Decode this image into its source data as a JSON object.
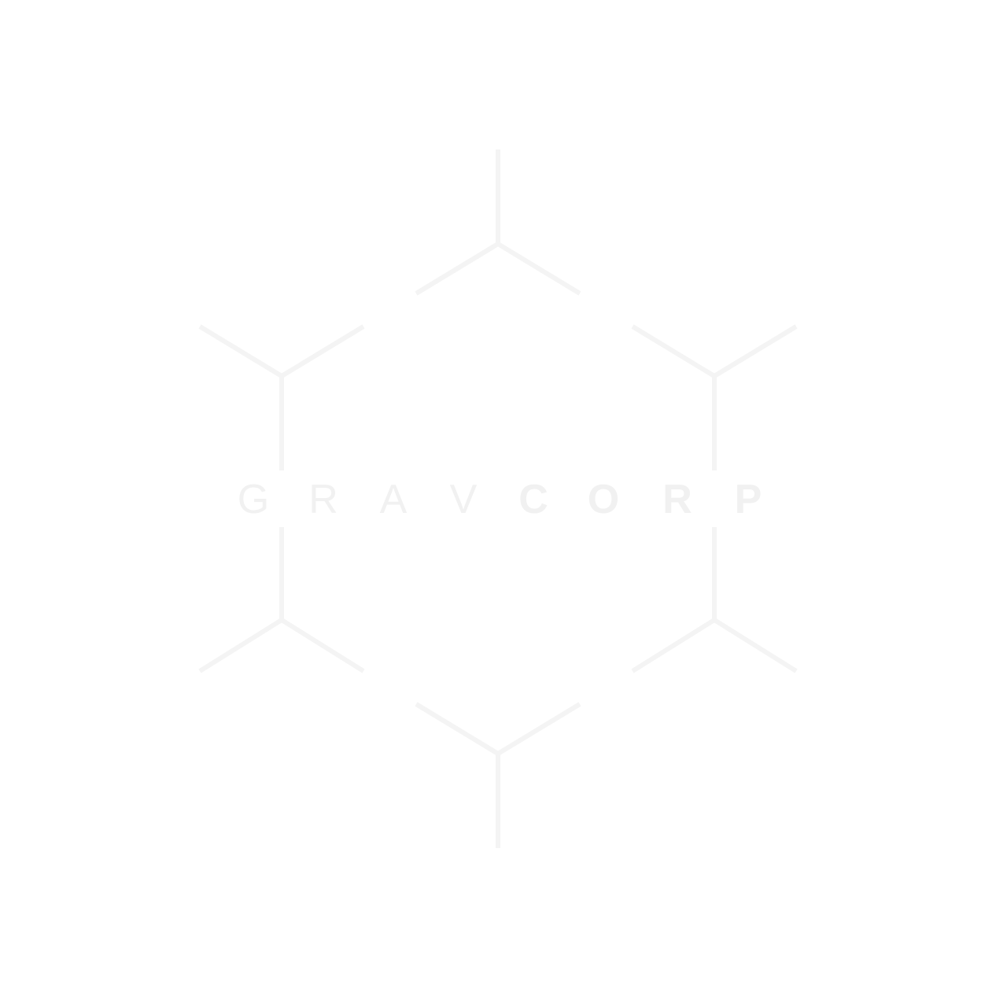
{
  "logo": {
    "name": "GravCorp logo",
    "letters_light": [
      "G",
      "R",
      "A",
      "V"
    ],
    "letters_bold": [
      "C",
      "O",
      "R",
      "P"
    ],
    "colors": {
      "background": "#ffffff",
      "mark": "#f4f4f4",
      "text": "#f1f1f1"
    }
  }
}
